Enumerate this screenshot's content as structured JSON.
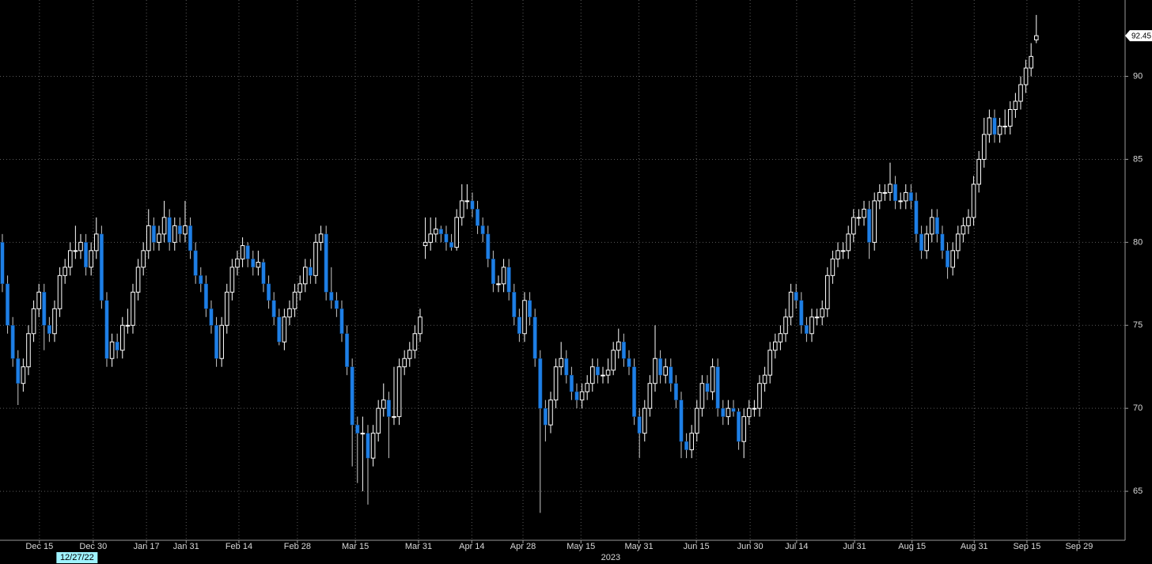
{
  "chart_data": {
    "type": "candlestick",
    "up_color": "#ffffff",
    "down_color": "#1e7fe6",
    "grid": true,
    "ylim": [
      62.05,
      94.6
    ],
    "yticks": [
      65,
      70,
      75,
      80,
      85,
      90
    ],
    "xlim": [
      -0.45,
      215
    ],
    "xticks": [
      {
        "value": 7.1,
        "label": "Dec 15"
      },
      {
        "value": 17.4,
        "label": "Dec 30"
      },
      {
        "value": 27.6,
        "label": "Jan 17"
      },
      {
        "value": 35.2,
        "label": "Jan 31"
      },
      {
        "value": 45.3,
        "label": "Feb 14"
      },
      {
        "value": 56.5,
        "label": "Feb 28"
      },
      {
        "value": 67.6,
        "label": "Mar 15"
      },
      {
        "value": 79.7,
        "label": "Mar 31"
      },
      {
        "value": 89.9,
        "label": "Apr 14"
      },
      {
        "value": 99.7,
        "label": "Apr 28"
      },
      {
        "value": 110.8,
        "label": "May 15"
      },
      {
        "value": 121.9,
        "label": "May 31"
      },
      {
        "value": 132.9,
        "label": "Jun 15"
      },
      {
        "value": 143.2,
        "label": "Jun 30"
      },
      {
        "value": 152.1,
        "label": "Jul 14"
      },
      {
        "value": 163.2,
        "label": "Jul 31"
      },
      {
        "value": 174.2,
        "label": "Aug 15"
      },
      {
        "value": 186.1,
        "label": "Aug 31"
      },
      {
        "value": 196.2,
        "label": "Sep 15"
      },
      {
        "value": 206.2,
        "label": "Sep 29"
      }
    ],
    "annotations": [
      {
        "text": "12/27/22",
        "x": 14.3
      },
      {
        "text": "2023",
        "x": 116.5
      }
    ],
    "candles": [
      [
        80,
        80.5,
        77,
        77.5
      ],
      [
        77.5,
        78,
        74.5,
        75
      ],
      [
        75,
        75.5,
        72.5,
        73
      ],
      [
        73,
        73.5,
        70.2,
        71.5
      ],
      [
        71.5,
        73,
        71,
        72.5
      ],
      [
        72.5,
        75,
        72,
        74.5
      ],
      [
        74.5,
        76.5,
        74,
        76
      ],
      [
        76,
        77.5,
        75.5,
        77
      ],
      [
        77,
        77.5,
        73.5,
        75
      ],
      [
        75,
        75.5,
        74,
        74.5
      ],
      [
        74.5,
        76.5,
        74,
        76
      ],
      [
        76,
        78.5,
        75.5,
        78
      ],
      [
        78,
        79,
        77.5,
        78.5
      ],
      [
        78.5,
        80,
        78,
        79.5
      ],
      [
        79.5,
        81,
        79,
        79.5
      ],
      [
        79.5,
        80.5,
        79,
        80
      ],
      [
        80,
        80.5,
        78,
        78.5
      ],
      [
        78.5,
        80,
        78,
        79.5
      ],
      [
        79.5,
        81.5,
        79,
        80.5
      ],
      [
        80.5,
        81,
        76,
        76.5
      ],
      [
        76.5,
        77,
        72.5,
        73
      ],
      [
        73,
        74.5,
        72.5,
        74
      ],
      [
        74,
        74.5,
        73,
        73.5
      ],
      [
        73.5,
        75.5,
        73,
        75
      ],
      [
        75,
        76,
        74.5,
        75
      ],
      [
        75,
        77.5,
        74.5,
        77
      ],
      [
        77,
        79,
        76.5,
        78.5
      ],
      [
        78.5,
        80,
        78,
        79.5
      ],
      [
        79.5,
        82,
        79,
        81
      ],
      [
        81,
        81.5,
        79.5,
        80
      ],
      [
        80,
        81,
        79.5,
        80.5
      ],
      [
        80.5,
        82.5,
        80,
        81.5
      ],
      [
        81.5,
        82,
        79.5,
        80
      ],
      [
        80,
        81.5,
        79.5,
        81
      ],
      [
        81,
        81.5,
        80,
        80.5
      ],
      [
        80.5,
        82.5,
        80,
        81
      ],
      [
        81,
        81.5,
        79,
        79.5
      ],
      [
        79.5,
        80,
        77.5,
        78
      ],
      [
        78,
        78.5,
        77,
        77.5
      ],
      [
        77.5,
        78,
        75.5,
        76
      ],
      [
        76,
        76.5,
        74.5,
        75
      ],
      [
        75,
        75.5,
        72.5,
        73
      ],
      [
        73,
        75.5,
        72.5,
        75
      ],
      [
        75,
        77.5,
        74.5,
        77
      ],
      [
        77,
        79,
        76.5,
        78.5
      ],
      [
        78.5,
        79.5,
        78,
        79
      ],
      [
        79,
        80.3,
        78.5,
        79.8
      ],
      [
        79.8,
        80,
        78.5,
        79
      ],
      [
        79,
        79.5,
        78,
        78.5
      ],
      [
        78.5,
        79.5,
        78,
        78.8
      ],
      [
        78.8,
        79,
        77,
        77.5
      ],
      [
        77.5,
        78,
        76,
        76.5
      ],
      [
        76.5,
        77,
        75,
        75.5
      ],
      [
        75.5,
        76,
        73.8,
        74
      ],
      [
        74,
        76,
        73.5,
        75.5
      ],
      [
        75.5,
        76.5,
        75,
        76
      ],
      [
        76,
        77.5,
        75.5,
        77
      ],
      [
        77,
        78,
        76.5,
        77.5
      ],
      [
        77.5,
        79,
        77,
        78.5
      ],
      [
        78.5,
        79,
        77.5,
        78
      ],
      [
        78,
        80.5,
        77.5,
        80
      ],
      [
        80,
        81,
        79.5,
        80.5
      ],
      [
        80.5,
        81,
        76.5,
        77
      ],
      [
        77,
        78.5,
        76,
        76.5
      ],
      [
        76.5,
        77,
        75.5,
        76
      ],
      [
        76,
        76.5,
        74,
        74.5
      ],
      [
        74.5,
        75,
        72,
        72.5
      ],
      [
        72.5,
        73,
        66.5,
        69
      ],
      [
        69,
        69.5,
        65.5,
        68.5
      ],
      [
        68.5,
        69.5,
        65,
        68.5
      ],
      [
        68.5,
        69,
        64.2,
        67
      ],
      [
        67,
        69,
        66.5,
        68.5
      ],
      [
        68.5,
        70.5,
        68,
        70
      ],
      [
        70,
        71.5,
        69.5,
        70.5
      ],
      [
        70.5,
        71,
        67,
        69.5
      ],
      [
        69.5,
        72.5,
        69,
        69.5
      ],
      [
        69.5,
        73,
        69,
        72.5
      ],
      [
        72.5,
        73.5,
        72,
        73
      ],
      [
        73,
        74,
        72.5,
        73.5
      ],
      [
        73.5,
        75,
        73,
        74.5
      ],
      [
        74.5,
        76,
        74,
        75.5
      ],
      [
        79.8,
        81.5,
        79,
        80
      ],
      [
        80,
        81.5,
        79.5,
        80.5
      ],
      [
        80.5,
        81.5,
        80,
        80.8
      ],
      [
        80.8,
        81,
        80,
        80.5
      ],
      [
        80.5,
        81,
        79.5,
        80
      ],
      [
        80,
        80.5,
        79.5,
        79.7
      ],
      [
        79.7,
        82,
        79.5,
        81.5
      ],
      [
        81.5,
        83.5,
        81,
        82.5
      ],
      [
        82.5,
        83.5,
        82,
        82.5
      ],
      [
        82.5,
        83,
        81.5,
        82
      ],
      [
        82,
        82.5,
        80.5,
        81
      ],
      [
        81,
        81.5,
        80,
        80.5
      ],
      [
        80.5,
        81,
        78.5,
        79
      ],
      [
        79,
        79.5,
        77,
        77.5
      ],
      [
        77.5,
        78,
        77,
        77.5
      ],
      [
        77.5,
        79,
        77,
        78.5
      ],
      [
        78.5,
        79,
        76.5,
        77
      ],
      [
        77,
        77.5,
        75,
        75.5
      ],
      [
        75.5,
        76,
        74,
        74.5
      ],
      [
        74.5,
        77,
        74,
        76.5
      ],
      [
        76.5,
        77,
        75,
        75.5
      ],
      [
        75.5,
        76,
        72.5,
        73
      ],
      [
        73,
        73.5,
        63.7,
        70
      ],
      [
        70,
        70.5,
        68,
        69
      ],
      [
        69,
        71,
        68.5,
        70.5
      ],
      [
        70.5,
        73,
        70,
        72.5
      ],
      [
        72.5,
        74,
        72,
        73
      ],
      [
        73,
        73.5,
        71.5,
        72
      ],
      [
        72,
        72.5,
        70.5,
        71
      ],
      [
        71,
        71.5,
        70,
        70.5
      ],
      [
        70.5,
        71.5,
        70,
        71
      ],
      [
        71,
        72,
        70.5,
        71.5
      ],
      [
        71.5,
        73,
        71,
        72.5
      ],
      [
        72.5,
        73,
        71.5,
        72
      ],
      [
        72,
        72.5,
        71.5,
        72
      ],
      [
        72,
        73,
        71.5,
        72.3
      ],
      [
        72.3,
        74,
        72,
        73.5
      ],
      [
        73.5,
        74.8,
        73,
        74
      ],
      [
        74,
        74.5,
        72.5,
        73
      ],
      [
        73,
        73.5,
        72,
        72.5
      ],
      [
        72.5,
        73,
        69,
        69.5
      ],
      [
        69.5,
        70,
        67,
        68.5
      ],
      [
        68.5,
        70.5,
        68,
        70
      ],
      [
        70,
        72,
        69.5,
        71.5
      ],
      [
        71.5,
        75,
        71,
        73
      ],
      [
        73,
        73.5,
        71.5,
        72
      ],
      [
        72,
        73,
        71.5,
        72.5
      ],
      [
        72.5,
        73,
        71,
        71.5
      ],
      [
        71.5,
        72,
        70,
        70.5
      ],
      [
        70.5,
        71,
        67,
        68
      ],
      [
        68,
        68.5,
        67,
        67.5
      ],
      [
        67.5,
        69,
        67,
        68.5
      ],
      [
        68.5,
        70.5,
        68,
        70
      ],
      [
        70,
        72,
        69.5,
        71.5
      ],
      [
        71.5,
        72,
        70.5,
        71
      ],
      [
        71,
        73,
        70.5,
        72.5
      ],
      [
        72.5,
        73,
        69.5,
        70
      ],
      [
        70,
        70.5,
        69,
        69.5
      ],
      [
        69.5,
        70.5,
        69,
        70
      ],
      [
        70,
        70.5,
        69.5,
        69.8
      ],
      [
        69.8,
        70,
        67.5,
        68
      ],
      [
        68,
        70,
        67,
        69.5
      ],
      [
        69.5,
        70.5,
        69,
        70
      ],
      [
        70,
        70.5,
        69.5,
        70
      ],
      [
        70,
        72,
        69.5,
        71.5
      ],
      [
        71.5,
        72.5,
        71,
        72
      ],
      [
        72,
        74,
        71.5,
        73.5
      ],
      [
        73.5,
        74.5,
        73,
        74
      ],
      [
        74,
        75,
        73.5,
        74.5
      ],
      [
        74.5,
        76,
        74,
        75.5
      ],
      [
        75.5,
        77.5,
        75,
        77
      ],
      [
        77,
        77.5,
        76,
        76.5
      ],
      [
        76.5,
        77,
        74.5,
        75
      ],
      [
        75,
        75.5,
        74,
        74.5
      ],
      [
        74.5,
        76,
        74,
        75.5
      ],
      [
        75.5,
        76,
        75,
        75.5
      ],
      [
        75.5,
        76.5,
        75,
        76
      ],
      [
        76,
        78.5,
        75.5,
        78
      ],
      [
        78,
        79.5,
        77.5,
        79
      ],
      [
        79,
        80,
        78.5,
        79.5
      ],
      [
        79.5,
        80,
        79,
        79.5
      ],
      [
        79.5,
        81,
        79,
        80.5
      ],
      [
        80.5,
        82,
        80,
        81.5
      ],
      [
        81.5,
        82,
        81,
        81.5
      ],
      [
        81.5,
        82.5,
        81,
        82
      ],
      [
        82,
        82.5,
        79,
        80
      ],
      [
        80,
        83,
        79.5,
        82.5
      ],
      [
        82.5,
        83.5,
        82,
        83
      ],
      [
        83,
        83.5,
        82.5,
        83
      ],
      [
        83,
        84.8,
        82.5,
        83.5
      ],
      [
        83.5,
        84,
        82,
        82.5
      ],
      [
        82.5,
        83,
        82,
        82.5
      ],
      [
        82.5,
        83.5,
        82,
        83
      ],
      [
        83,
        83.5,
        82,
        82.5
      ],
      [
        82.5,
        83,
        80,
        80.5
      ],
      [
        80.5,
        81,
        79,
        79.5
      ],
      [
        79.5,
        81,
        79,
        80.5
      ],
      [
        80.5,
        82,
        80,
        81.5
      ],
      [
        81.5,
        82,
        80,
        80.5
      ],
      [
        80.5,
        81,
        79,
        79.5
      ],
      [
        79.5,
        80,
        77.8,
        78.5
      ],
      [
        78.5,
        80,
        78,
        79.5
      ],
      [
        79.5,
        81,
        79,
        80.5
      ],
      [
        80.5,
        81.5,
        80,
        81
      ],
      [
        81,
        82,
        80.5,
        81.5
      ],
      [
        81.5,
        84,
        81,
        83.5
      ],
      [
        83.5,
        85.5,
        83,
        85
      ],
      [
        85,
        87.5,
        84.5,
        86.5
      ],
      [
        86.5,
        88,
        86,
        87.5
      ],
      [
        87.5,
        88,
        86,
        86.5
      ],
      [
        86.5,
        87.5,
        86,
        87
      ],
      [
        87,
        88,
        86.5,
        87
      ],
      [
        87,
        88.5,
        86.5,
        88
      ],
      [
        88,
        89,
        87.5,
        88.5
      ],
      [
        88.5,
        90,
        88,
        89.5
      ],
      [
        89.5,
        91,
        89,
        90.5
      ],
      [
        90.5,
        92,
        90,
        91.2
      ],
      [
        92.2,
        93.7,
        92,
        92.45
      ]
    ]
  }
}
